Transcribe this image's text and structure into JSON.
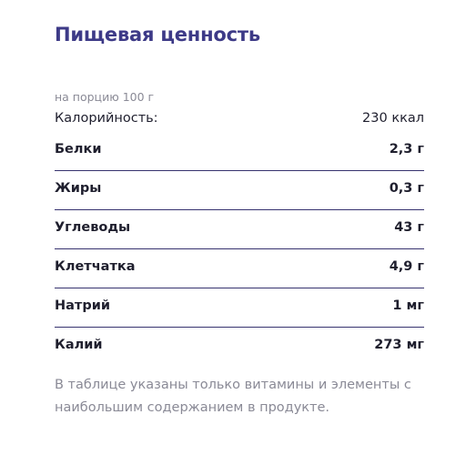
{
  "header": {
    "title": "Пищевая ценность",
    "portion": "на порцию 100 г"
  },
  "calories": {
    "label": "Калорийность:",
    "value": "230 ккал"
  },
  "table": {
    "rows": [
      [
        "Белки",
        "2,3 г"
      ],
      [
        "Жиры",
        "0,3 г"
      ],
      [
        "Углеводы",
        "43 г"
      ],
      [
        "Клетчатка",
        "4,9 г"
      ],
      [
        "Натрий",
        "1 мг"
      ],
      [
        "Калий",
        "273 мг"
      ]
    ]
  },
  "footnote": "В таблице указаны только витамины и элементы с наибольшим содержанием в продукте."
}
